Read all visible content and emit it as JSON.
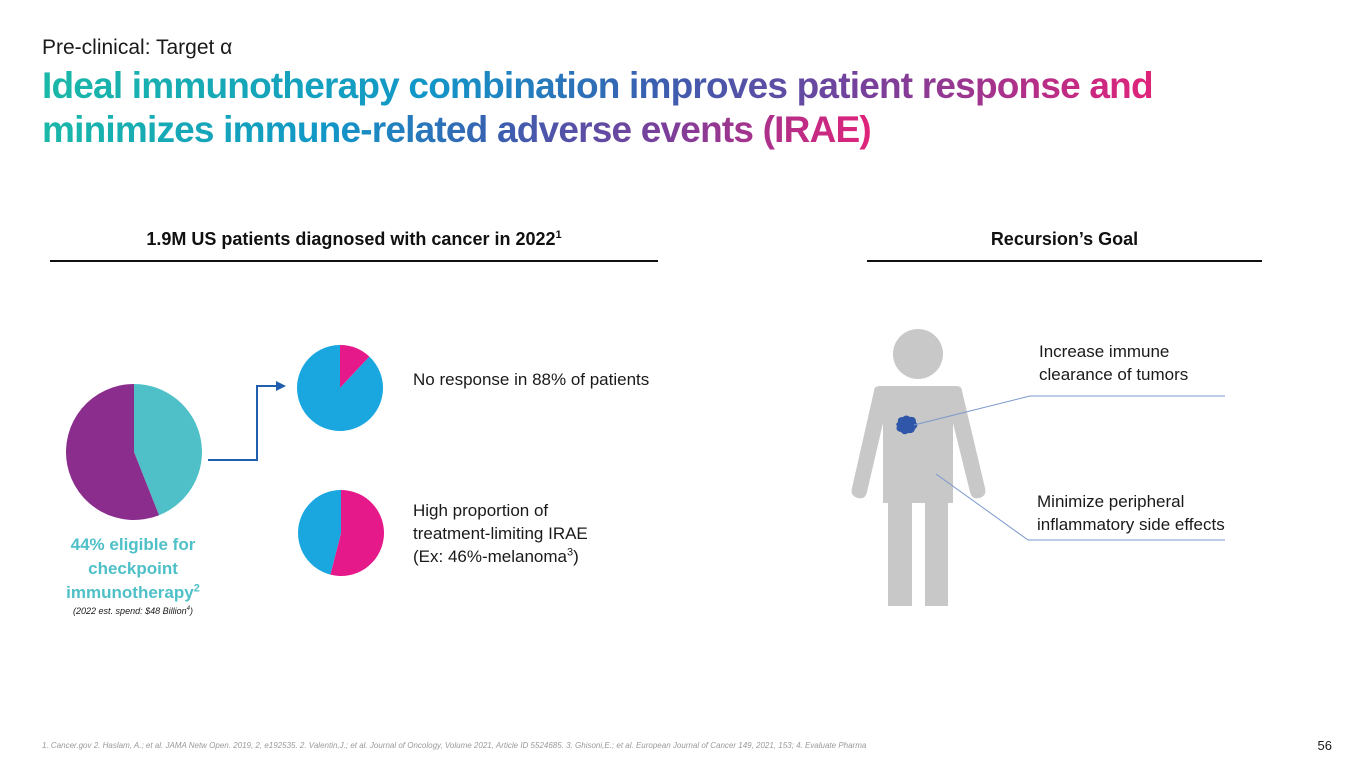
{
  "header": {
    "eyebrow": "Pre-clinical: Target α",
    "title": "Ideal immunotherapy combination improves patient response and minimizes immune-related adverse events (IRAE)"
  },
  "left_panel": {
    "heading": "1.9M US patients diagnosed with cancer in 2022",
    "heading_sup": "1",
    "eligible": {
      "text": "44% eligible for checkpoint immunotherapy",
      "sup": "2",
      "spend": "(2022 est. spend: $48 Billion",
      "spend_sup": "4",
      "spend_close": ")"
    },
    "no_response": "No response in 88% of patients",
    "irae": {
      "line1": "High proportion of",
      "line2": "treatment-limiting IRAE",
      "line3_pre": "(Ex: 46%-melanoma",
      "line3_sup": "3",
      "line3_post": ")"
    }
  },
  "right_panel": {
    "heading": "Recursion’s Goal",
    "goal_1": "Increase immune clearance of tumors",
    "goal_2": "Minimize peripheral inflammatory side effects"
  },
  "footnote": "1. Cancer.gov  2. Haslam, A.; et al. JAMA Netw Open. 2019, 2, e192535.  2. Valentin,J.; et al. Journal of Oncology, Volume 2021, Article ID 5524685. 3. Ghisoni,E.; et al. European Journal of Cancer 149, 2021, 153; 4. Evaluate Pharma",
  "page_number": "56",
  "chart_data": [
    {
      "type": "pie",
      "id": "eligible-pie",
      "slices": [
        {
          "value": 44,
          "color": "#4fc0c8"
        },
        {
          "value": 56,
          "color": "#8a2d8c"
        }
      ]
    },
    {
      "type": "pie",
      "id": "response-pie",
      "slices": [
        {
          "value": 12,
          "color": "#e5198a"
        },
        {
          "value": 88,
          "color": "#1aa7e0"
        }
      ]
    },
    {
      "type": "pie",
      "id": "irae-pie",
      "slices": [
        {
          "value": 54,
          "color": "#e5198a"
        },
        {
          "value": 46,
          "color": "#1aa7e0"
        }
      ]
    }
  ],
  "colors": {
    "connector_arrow": "#1f5fae",
    "figure_gray": "#c8c8c8",
    "tumor": "#2f56a8",
    "callout_line": "#7a97cc"
  }
}
